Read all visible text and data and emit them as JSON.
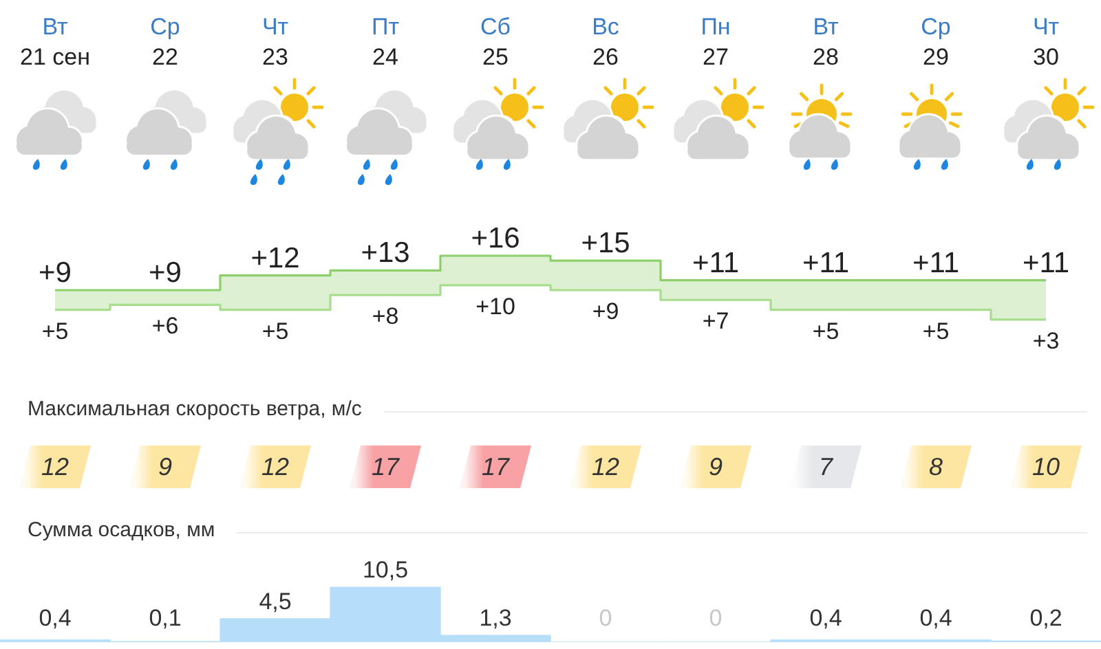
{
  "chart_data": [
    {
      "type": "step",
      "categories": [
        "Вт\n21 сен",
        "Ср\n22",
        "Чт\n23",
        "Пт\n24",
        "Сб\n25",
        "Вс\n26",
        "Пн\n27",
        "Вт\n28",
        "Ср\n29",
        "Чт\n30"
      ],
      "tick_labels": "x",
      "marker": "none",
      "series": [
        {
          "color": "#8dd06b",
          "values": [
            9,
            9,
            12,
            13,
            16,
            15,
            11,
            11,
            11,
            11
          ],
          "value_labels": [
            "+9",
            "+9",
            "+12",
            "+13",
            "+16",
            "+15",
            "+11",
            "+11",
            "+11",
            "+11"
          ]
        },
        {
          "color": "#a7dd8c",
          "values": [
            5,
            6,
            5,
            8,
            10,
            9,
            7,
            5,
            5,
            3
          ],
          "value_labels": [
            "+5",
            "+6",
            "+5",
            "+8",
            "+10",
            "+9",
            "+7",
            "+5",
            "+5",
            "+3"
          ]
        }
      ]
    },
    {
      "type": "other",
      "title": "Максимальная скорость ветра, м/с",
      "values": [
        12,
        9,
        12,
        17,
        17,
        12,
        9,
        7,
        8,
        10
      ],
      "data_labels": true
    },
    {
      "type": "bar",
      "title": "Сумма осадков, мм",
      "categories": [
        null,
        null,
        null,
        null,
        null,
        null,
        null,
        null,
        null,
        null
      ],
      "values": [
        0.4,
        0.1,
        4.5,
        10.5,
        1.3,
        0,
        0,
        0.4,
        0.4,
        0.2
      ],
      "value_labels": [
        "0,4",
        "0,1",
        "4,5",
        "10,5",
        "1,3",
        "0",
        "0",
        "0,4",
        "0,4",
        "0,2"
      ],
      "color": "#b6defa",
      "tick_labels": "x"
    }
  ]
}
